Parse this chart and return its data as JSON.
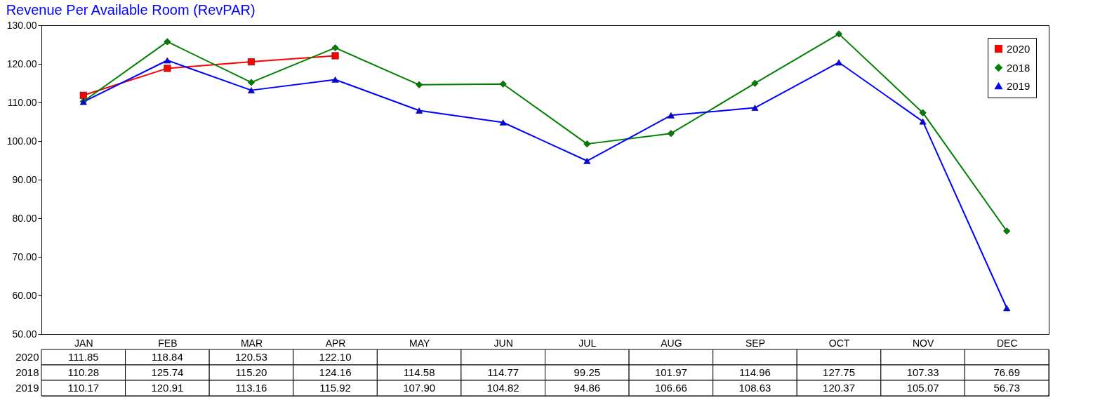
{
  "chart_data": {
    "type": "line",
    "title": "Revenue Per Available Room (RevPAR)",
    "categories": [
      "JAN",
      "FEB",
      "MAR",
      "APR",
      "MAY",
      "JUN",
      "JUL",
      "AUG",
      "SEP",
      "OCT",
      "NOV",
      "DEC"
    ],
    "series": [
      {
        "name": "2020",
        "color": "#ff0000",
        "marker": "square",
        "values": [
          111.85,
          118.84,
          120.53,
          122.1,
          null,
          null,
          null,
          null,
          null,
          null,
          null,
          null
        ],
        "value_labels": [
          "111.85",
          "118.84",
          "120.53",
          "122.10",
          null,
          null,
          null,
          null,
          null,
          null,
          null,
          null
        ]
      },
      {
        "name": "2018",
        "color": "#008000",
        "marker": "diamond",
        "values": [
          110.28,
          125.74,
          115.2,
          124.16,
          114.58,
          114.77,
          99.25,
          101.97,
          114.96,
          127.75,
          107.33,
          76.69
        ],
        "value_labels": [
          "110.28",
          "125.74",
          "115.20",
          "124.16",
          "114.58",
          "114.77",
          "99.25",
          "101.97",
          "114.96",
          "127.75",
          "107.33",
          "76.69"
        ]
      },
      {
        "name": "2019",
        "color": "#0000ff",
        "marker": "triangle",
        "values": [
          110.17,
          120.91,
          113.16,
          115.92,
          107.9,
          104.82,
          94.86,
          106.66,
          108.63,
          120.37,
          105.07,
          56.73
        ],
        "value_labels": [
          "110.17",
          "120.91",
          "113.16",
          "115.92",
          "107.90",
          "104.82",
          "94.86",
          "106.66",
          "108.63",
          "120.37",
          "105.07",
          "56.73"
        ]
      }
    ],
    "ylim": [
      50,
      130
    ],
    "yticks": [
      {
        "value": 50,
        "label": "50.00"
      },
      {
        "value": 60,
        "label": "60.00"
      },
      {
        "value": 70,
        "label": "70.00"
      },
      {
        "value": 80,
        "label": "80.00"
      },
      {
        "value": 90,
        "label": "90.00"
      },
      {
        "value": 100,
        "label": "100.00"
      },
      {
        "value": 110,
        "label": "110.00"
      },
      {
        "value": 120,
        "label": "120.00"
      },
      {
        "value": 130,
        "label": "130.00"
      }
    ],
    "grid": false,
    "legend": "top right"
  }
}
